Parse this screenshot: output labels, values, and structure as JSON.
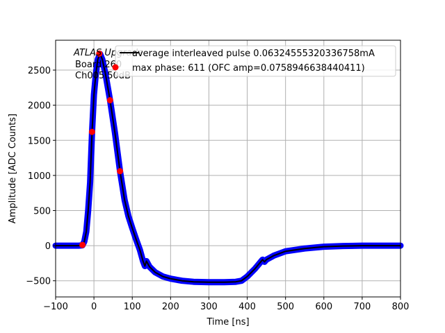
{
  "chart_data": {
    "type": "line",
    "title": "",
    "xlabel": "Time [ns]",
    "ylabel": "Amplitude [ADC Counts]",
    "xlim": [
      -100,
      800
    ],
    "ylim": [
      -730,
      2925
    ],
    "grid": true,
    "x_ticks": [
      -100,
      0,
      100,
      200,
      300,
      400,
      500,
      600,
      700,
      800
    ],
    "x_tick_labels": [
      "−100",
      "0",
      "100",
      "200",
      "300",
      "400",
      "500",
      "600",
      "700",
      "800"
    ],
    "y_ticks": [
      -500,
      0,
      500,
      1000,
      1500,
      2000,
      2500
    ],
    "y_tick_labels": [
      "−500",
      "0",
      "500",
      "1000",
      "1500",
      "2000",
      "2500"
    ],
    "annotation": {
      "lines": [
        "ATLAS Upgrade",
        "Board 260",
        "Ch005 50dB"
      ]
    },
    "legend": {
      "placement": "top-right",
      "entries": [
        "average interleaved pulse 0.06324555320336758mA",
        "max phase: 611 (OFC amp=0.0758946638440411)"
      ]
    },
    "series": [
      {
        "name": "average interleaved pulse 0.06324555320336758mA",
        "style": "line",
        "color": "#000000",
        "scatter_color": "#0000ff",
        "x": [
          -100,
          -40,
          -30,
          -25,
          -20,
          -15,
          -10,
          -5,
          0,
          5,
          10,
          16,
          22,
          30,
          42,
          55,
          68,
          80,
          90,
          100,
          110,
          120,
          128,
          133,
          137,
          145,
          160,
          180,
          200,
          230,
          260,
          300,
          340,
          370,
          385,
          400,
          420,
          440,
          445,
          450,
          470,
          500,
          550,
          600,
          650,
          700,
          800
        ],
        "y": [
          0,
          0,
          5,
          60,
          200,
          500,
          900,
          1620,
          2150,
          2450,
          2650,
          2730,
          2650,
          2450,
          2070,
          1600,
          1060,
          650,
          420,
          250,
          90,
          -60,
          -220,
          -290,
          -220,
          -300,
          -380,
          -440,
          -470,
          -500,
          -515,
          -520,
          -520,
          -515,
          -500,
          -440,
          -330,
          -200,
          -230,
          -200,
          -140,
          -80,
          -40,
          -15,
          -5,
          0,
          0
        ]
      },
      {
        "name": "max phase: 611 (OFC amp=0.0758946638440411)",
        "style": "scatter",
        "color": "#ff0000",
        "x": [
          -30,
          -5,
          14,
          42,
          68
        ],
        "y": [
          10,
          1620,
          2735,
          2070,
          1060
        ]
      }
    ]
  }
}
